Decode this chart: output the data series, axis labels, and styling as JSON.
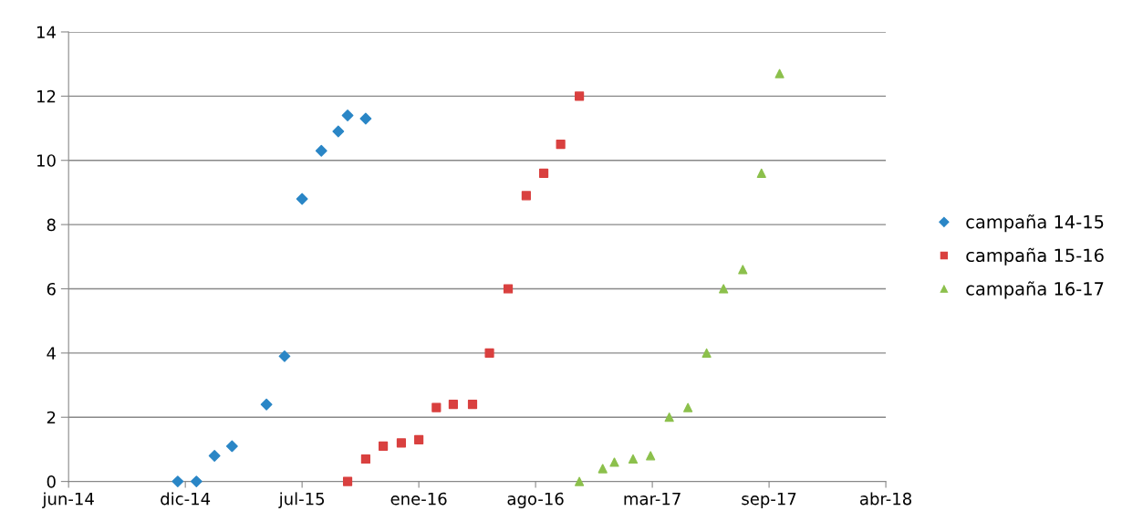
{
  "chart_data": {
    "type": "scatter",
    "xlim": [
      "2014-06-07",
      "2018-04-07"
    ],
    "xticks": [
      {
        "value": "2014-06-07",
        "label": "jun-14"
      },
      {
        "value": "2014-12-24",
        "label": "dic-14"
      },
      {
        "value": "2015-07-12",
        "label": "jul-15"
      },
      {
        "value": "2016-01-28",
        "label": "ene-16"
      },
      {
        "value": "2016-08-15",
        "label": "ago-16"
      },
      {
        "value": "2017-03-03",
        "label": "mar-17"
      },
      {
        "value": "2017-09-19",
        "label": "sep-17"
      },
      {
        "value": "2018-04-07",
        "label": "abr-18"
      }
    ],
    "ylim": [
      0,
      14
    ],
    "yticks": [
      0,
      2,
      4,
      6,
      8,
      10,
      12,
      14
    ],
    "grid": "y",
    "legend": "right",
    "series": [
      {
        "name": "campaña 14-15",
        "color": "#2a86c6",
        "marker": "diamond",
        "x": [
          "2014-12-11",
          "2015-01-12",
          "2015-02-12",
          "2015-03-14",
          "2015-05-12",
          "2015-06-12",
          "2015-07-12",
          "2015-08-14",
          "2015-09-12",
          "2015-09-28",
          "2015-10-29"
        ],
        "values": [
          0,
          0,
          0.8,
          1.1,
          2.4,
          3.9,
          8.8,
          10.3,
          10.9,
          11.4,
          11.3
        ]
      },
      {
        "name": "campaña 15-16",
        "color": "#d9403f",
        "marker": "square",
        "x": [
          "2015-09-28",
          "2015-10-29",
          "2015-11-28",
          "2015-12-29",
          "2016-01-28",
          "2016-02-27",
          "2016-03-27",
          "2016-04-29",
          "2016-05-28",
          "2016-06-29",
          "2016-07-30",
          "2016-08-29",
          "2016-09-27",
          "2016-10-29"
        ],
        "values": [
          0,
          0.7,
          1.1,
          1.2,
          1.3,
          2.3,
          2.4,
          2.4,
          4.0,
          6.0,
          8.9,
          9.6,
          10.5,
          12.0
        ]
      },
      {
        "name": "campaña 16-17",
        "color": "#8cc04c",
        "marker": "triangle",
        "x": [
          "2016-10-29",
          "2016-12-08",
          "2016-12-28",
          "2017-01-29",
          "2017-02-28",
          "2017-04-01",
          "2017-05-03",
          "2017-06-04",
          "2017-07-03",
          "2017-08-05",
          "2017-09-06",
          "2017-10-07"
        ],
        "values": [
          0,
          0.4,
          0.6,
          0.7,
          0.8,
          2.0,
          2.3,
          4.0,
          6.0,
          6.6,
          9.6,
          12.7
        ]
      }
    ]
  }
}
